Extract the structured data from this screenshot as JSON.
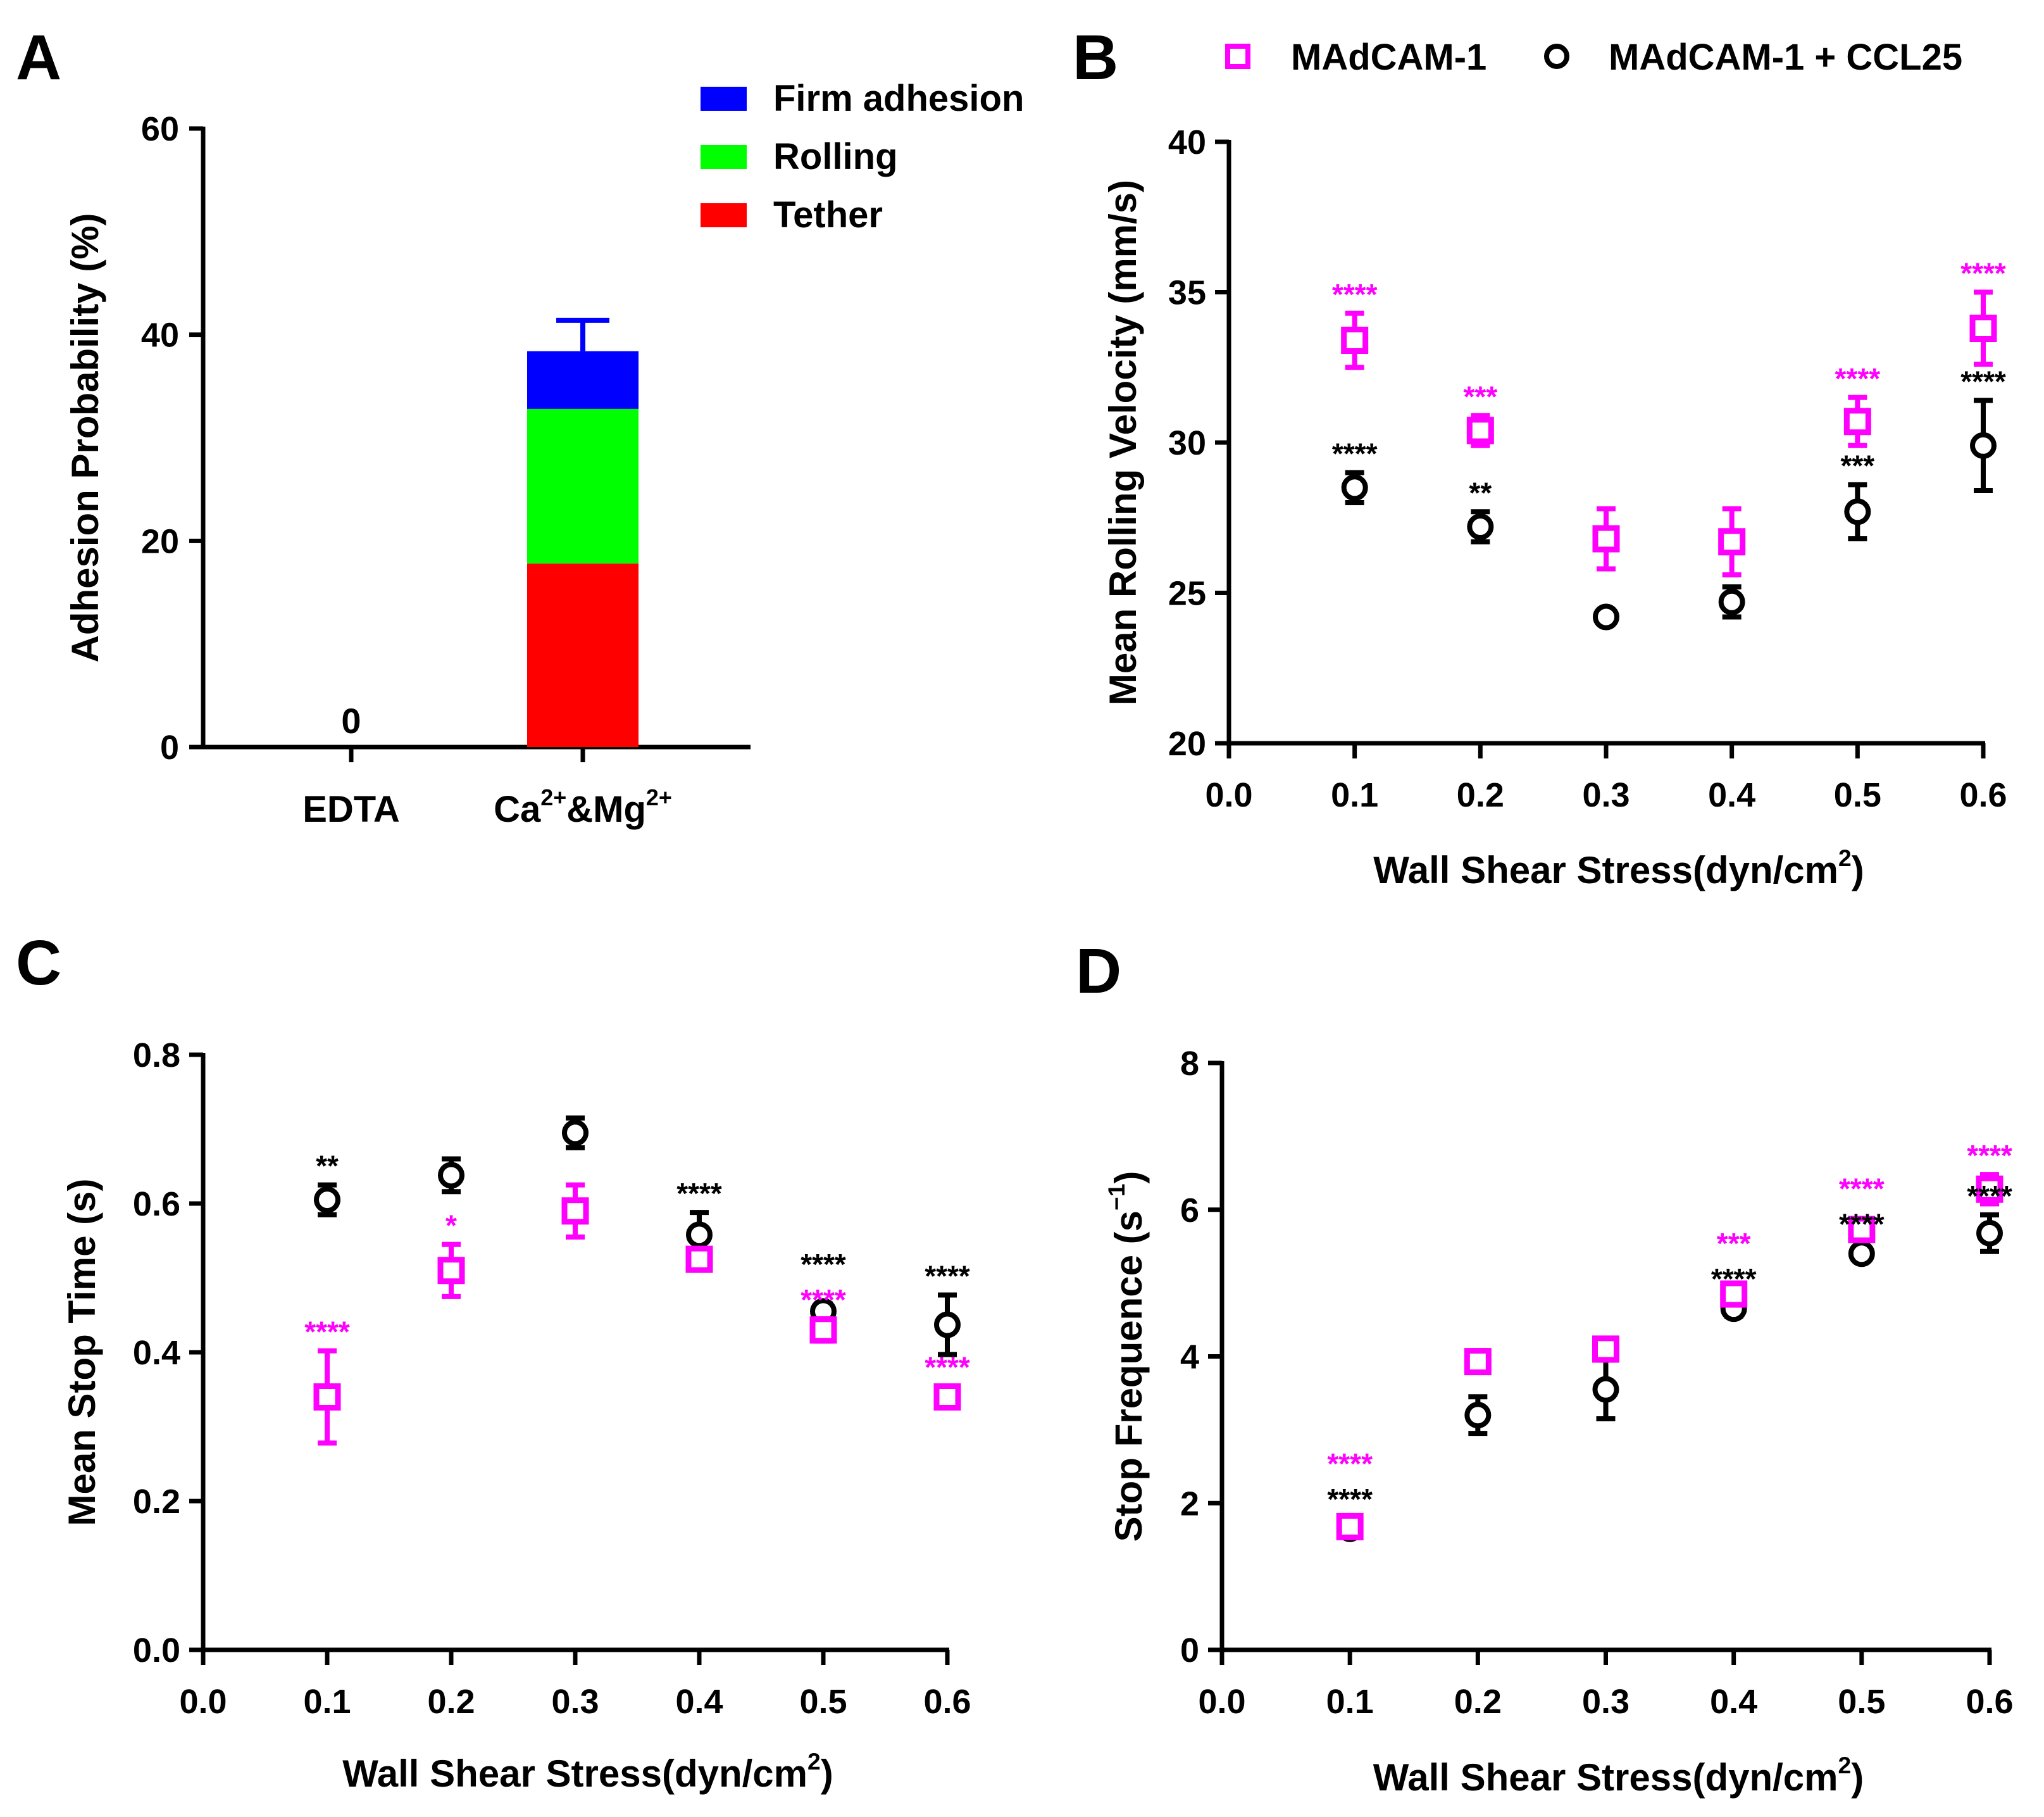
{
  "colors": {
    "madcam": "#ff00ff",
    "ccl25": "#000000",
    "firm": "#0000ff",
    "rolling": "#00ff00",
    "tether": "#ff0000"
  },
  "panel_labels": [
    "A",
    "B",
    "C",
    "D"
  ],
  "legend_ab": {
    "items": [
      "MAdCAM-1",
      "MAdCAM-1 + CCL25"
    ]
  },
  "chart_data": [
    {
      "id": "A",
      "type": "bar",
      "stacked": true,
      "ylabel": "Adhesion Probability (%)",
      "ylim": [
        0,
        60
      ],
      "yticks": [
        "0",
        "20",
        "40",
        "60"
      ],
      "categories": [
        [
          [
            "EDTA",
            ""
          ]
        ],
        [
          [
            "Ca",
            ""
          ],
          [
            "2+",
            "sup"
          ],
          [
            "&Mg",
            ""
          ],
          [
            "2+",
            "sup"
          ]
        ]
      ],
      "series": [
        {
          "name": "Tether",
          "values": [
            0,
            17.8
          ]
        },
        {
          "name": "Rolling",
          "values": [
            0,
            15.0
          ]
        },
        {
          "name": "Firm adhesion",
          "values": [
            0,
            5.6
          ]
        }
      ],
      "total_error": [
        0,
        3.0
      ],
      "value_labels": [
        "0",
        ""
      ],
      "legend": [
        "Firm adhesion",
        "Rolling",
        "Tether"
      ],
      "legend_position": "top-right"
    },
    {
      "id": "B",
      "type": "scatter",
      "ylabel": [
        [
          "Mean Rolling Velocity (mm/s)",
          ""
        ]
      ],
      "xlabel": [
        [
          "Wall Shear Stress(dyn/cm",
          ""
        ],
        [
          "2",
          "sup"
        ],
        [
          ")",
          ""
        ]
      ],
      "xlim": [
        0,
        0.6
      ],
      "ylim": [
        20,
        40
      ],
      "xticks": [
        "0.0",
        "0.1",
        "0.2",
        "0.3",
        "0.4",
        "0.5",
        "0.6"
      ],
      "yticks": [
        "20",
        "25",
        "30",
        "35",
        "40"
      ],
      "x": [
        0.1,
        0.2,
        0.3,
        0.4,
        0.5,
        0.6
      ],
      "series": [
        {
          "name": "MAdCAM-1",
          "values": [
            33.4,
            30.4,
            26.8,
            26.7,
            30.7,
            33.8
          ],
          "errors": [
            0.9,
            0.5,
            1.0,
            1.1,
            0.8,
            1.2
          ],
          "stars": [
            "****",
            "***",
            "",
            "",
            "****",
            "****"
          ]
        },
        {
          "name": "MAdCAM-1 + CCL25",
          "values": [
            28.5,
            27.2,
            24.2,
            24.7,
            27.7,
            29.9
          ],
          "errors": [
            0.5,
            0.5,
            0.2,
            0.5,
            0.9,
            1.5
          ],
          "stars": [
            "****",
            "**",
            "",
            "",
            "***",
            "****"
          ]
        }
      ]
    },
    {
      "id": "C",
      "type": "scatter",
      "ylabel": [
        [
          "Mean Stop Time (s)",
          ""
        ]
      ],
      "xlabel": [
        [
          "Wall Shear Stress(dyn/cm",
          ""
        ],
        [
          "2",
          "sup"
        ],
        [
          ")",
          ""
        ]
      ],
      "xlim": [
        0,
        0.6
      ],
      "ylim": [
        0,
        0.8
      ],
      "xticks": [
        "0.0",
        "0.1",
        "0.2",
        "0.3",
        "0.4",
        "0.5",
        "0.6"
      ],
      "yticks": [
        "0.0",
        "0.2",
        "0.4",
        "0.6",
        "0.8"
      ],
      "x": [
        0.1,
        0.2,
        0.3,
        0.4,
        0.5,
        0.6
      ],
      "series": [
        {
          "name": "MAdCAM-1",
          "values": [
            0.34,
            0.51,
            0.59,
            0.525,
            0.43,
            0.34
          ],
          "errors": [
            0.062,
            0.035,
            0.035,
            0.01,
            0.015,
            0.005
          ],
          "stars": [
            "****",
            "*",
            "",
            "",
            "****",
            "****"
          ]
        },
        {
          "name": "MAdCAM-1 + CCL25",
          "values": [
            0.605,
            0.638,
            0.695,
            0.558,
            0.455,
            0.437
          ],
          "errors": [
            0.02,
            0.022,
            0.02,
            0.03,
            0.01,
            0.04
          ],
          "stars": [
            "**",
            "",
            "",
            "****",
            "****",
            "****"
          ]
        }
      ]
    },
    {
      "id": "D",
      "type": "scatter",
      "ylabel": [
        [
          "Stop Frequence (s",
          ""
        ],
        [
          "−1",
          "sup"
        ],
        [
          ")",
          ""
        ]
      ],
      "xlabel": [
        [
          "Wall Shear Stress(dyn/cm",
          ""
        ],
        [
          "2",
          "sup"
        ],
        [
          ")",
          ""
        ]
      ],
      "xlim": [
        0,
        0.6
      ],
      "ylim": [
        0,
        8
      ],
      "xticks": [
        "0.0",
        "0.1",
        "0.2",
        "0.3",
        "0.4",
        "0.5",
        "0.6"
      ],
      "yticks": [
        "0",
        "2",
        "4",
        "6",
        "8"
      ],
      "x": [
        0.1,
        0.2,
        0.3,
        0.4,
        0.5,
        0.6
      ],
      "series": [
        {
          "name": "MAdCAM-1",
          "values": [
            1.68,
            3.93,
            4.1,
            4.85,
            5.73,
            6.28
          ],
          "errors": [
            0.05,
            0.15,
            0.08,
            0.1,
            0.08,
            0.2
          ],
          "stars": [
            "****",
            "",
            "",
            "***",
            "****",
            "****"
          ]
        },
        {
          "name": "MAdCAM-1 + CCL25",
          "values": [
            1.65,
            3.2,
            3.55,
            4.65,
            5.4,
            5.68
          ],
          "errors": [
            0.05,
            0.25,
            0.4,
            0.1,
            0.05,
            0.25
          ],
          "stars": [
            "****",
            "",
            "",
            "****",
            "****",
            "****"
          ]
        }
      ]
    }
  ]
}
